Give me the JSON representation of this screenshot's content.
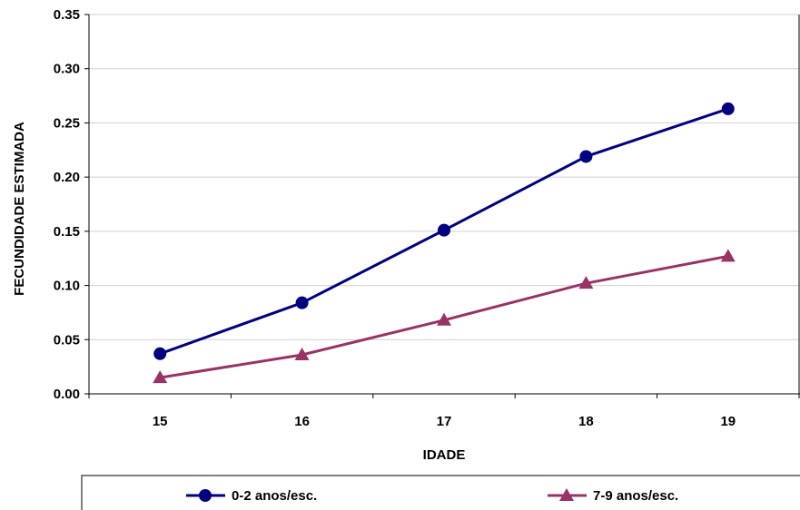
{
  "chart_data": {
    "type": "line",
    "title": "",
    "xlabel": "IDADE",
    "ylabel": "FECUNDIDADE ESTIMADA",
    "categories": [
      "15",
      "16",
      "17",
      "18",
      "19"
    ],
    "ylim": [
      0,
      0.35
    ],
    "yticks": [
      "0.00",
      "0.05",
      "0.10",
      "0.15",
      "0.20",
      "0.25",
      "0.30",
      "0.35"
    ],
    "grid": true,
    "legend_position": "bottom",
    "series": [
      {
        "name": "0-2 anos/esc.",
        "values": [
          0.037,
          0.084,
          0.151,
          0.219,
          0.263
        ],
        "color": "#000080",
        "marker": "circle"
      },
      {
        "name": "7-9 anos/esc.",
        "values": [
          0.015,
          0.036,
          0.068,
          0.102,
          0.127
        ],
        "color": "#993366",
        "marker": "triangle"
      }
    ]
  }
}
